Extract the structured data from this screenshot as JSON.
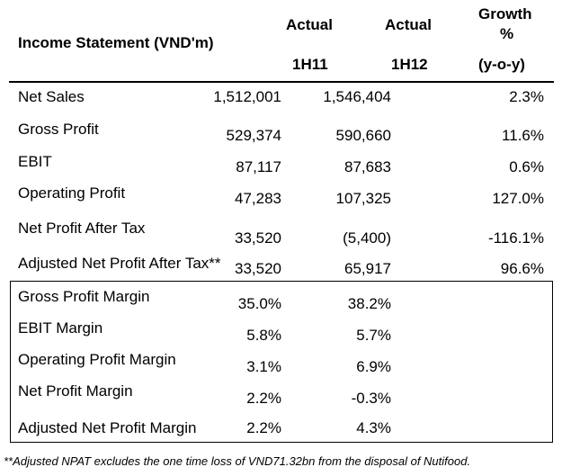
{
  "header": {
    "title": "Income Statement (VND'm)",
    "col1_line1": "Actual",
    "col1_line2": "1H11",
    "col2_line1": "Actual",
    "col2_line2": "1H12",
    "col3_line1": "Growth",
    "col3_line2": "%",
    "col3_line3": "(y-o-y)"
  },
  "rows": [
    {
      "label": "Net Sales",
      "h111": "1,512,001",
      "h112": "1,546,404",
      "growth": "2.3%"
    },
    {
      "label": "Gross Profit",
      "h111": "529,374",
      "h112": "590,660",
      "growth": "11.6%"
    },
    {
      "label": "EBIT",
      "h111": "87,117",
      "h112": "87,683",
      "growth": "0.6%"
    },
    {
      "label": "Operating Profit",
      "h111": "47,283",
      "h112": "107,325",
      "growth": "127.0%"
    },
    {
      "label": "Net Profit After Tax",
      "h111": "33,520",
      "h112": "(5,400)",
      "growth": "-116.1%"
    },
    {
      "label": "Adjusted Net Profit After Tax**",
      "h111": "33,520",
      "h112": "65,917",
      "growth": "96.6%"
    }
  ],
  "margins": [
    {
      "label": "Gross Profit Margin",
      "h111": "35.0%",
      "h112": "38.2%"
    },
    {
      "label": "EBIT Margin",
      "h111": "5.8%",
      "h112": "5.7%"
    },
    {
      "label": "Operating Profit Margin",
      "h111": "3.1%",
      "h112": "6.9%"
    },
    {
      "label": "Net Profit Margin",
      "h111": "2.2%",
      "h112": "-0.3%"
    },
    {
      "label": "Adjusted Net Profit Margin",
      "h111": "2.2%",
      "h112": "4.3%"
    }
  ],
  "footnote": "**Adjusted NPAT excludes the one time loss of VND71.32bn from the disposal of Nutifood."
}
